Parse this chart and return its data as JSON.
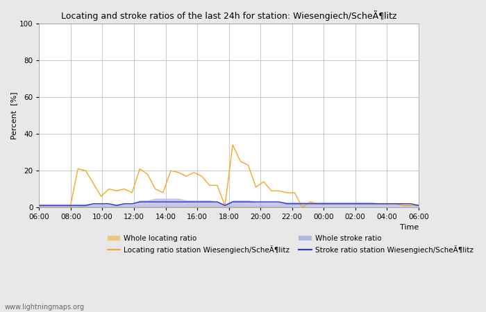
{
  "title": "Locating and stroke ratios of the last 24h for station: Wiesengiech/ScheÃ¶litz",
  "xlabel": "Time",
  "ylabel": "Percent  [%]",
  "watermark": "www.lightningmaps.org",
  "ylim": [
    0,
    100
  ],
  "yticks": [
    0,
    20,
    40,
    60,
    80,
    100
  ],
  "x_labels": [
    "06:00",
    "08:00",
    "10:00",
    "12:00",
    "14:00",
    "16:00",
    "18:00",
    "20:00",
    "22:00",
    "00:00",
    "02:00",
    "04:00",
    "06:00"
  ],
  "locating_line_color": "#f5a623",
  "locating_fill_color": "#e8c97a",
  "stroke_line_color": "#3030cc",
  "stroke_fill_color": "#b0b8e0",
  "bg_color": "#e8e8e8",
  "plot_bg_color": "#ffffff",
  "grid_color": "#b0b0b0",
  "locating_line": [
    0,
    0,
    0,
    0,
    0,
    21,
    20,
    13,
    6,
    10,
    9,
    10,
    8,
    21,
    18,
    10,
    8,
    20,
    19,
    17,
    19,
    17,
    12,
    12,
    1,
    34,
    25,
    23,
    11,
    14,
    9,
    9,
    8,
    8,
    0,
    3,
    2,
    2,
    2,
    2,
    2,
    2,
    2,
    2,
    2,
    2,
    2,
    1,
    1,
    1
  ],
  "locating_fill": [
    0,
    0,
    0,
    0,
    0,
    1,
    1,
    1,
    1,
    1,
    1,
    1,
    1,
    1,
    1,
    1,
    1,
    1,
    1,
    1,
    1,
    1,
    1,
    1,
    1,
    1,
    1,
    1,
    1,
    1,
    1,
    1,
    1,
    0,
    0,
    0,
    0,
    0,
    0,
    0,
    0,
    0,
    0,
    0,
    0,
    0,
    0,
    0,
    0,
    0
  ],
  "stroke_line": [
    1,
    1,
    1,
    1,
    1,
    1,
    1,
    2,
    2,
    2,
    1,
    2,
    2,
    3,
    3,
    3,
    3,
    3,
    3,
    3,
    3,
    3,
    3,
    3,
    1,
    3,
    3,
    3,
    3,
    3,
    3,
    3,
    2,
    2,
    2,
    2,
    2,
    2,
    2,
    2,
    2,
    2,
    2,
    2,
    2,
    2,
    2,
    2,
    2,
    1
  ],
  "stroke_fill": [
    2,
    2,
    2,
    2,
    2,
    2,
    2,
    2,
    2,
    2,
    2,
    2,
    2,
    4,
    4,
    5,
    5,
    5,
    5,
    4,
    4,
    4,
    4,
    3,
    2,
    4,
    4,
    4,
    3,
    3,
    3,
    3,
    3,
    3,
    3,
    3,
    3,
    3,
    3,
    3,
    3,
    3,
    3,
    3,
    2,
    2,
    2,
    2,
    2,
    2
  ],
  "n_points": 50,
  "legend_labels": [
    "Whole locating ratio",
    "Locating ratio station Wiesengiech/ScheÃ¶litz",
    "Whole stroke ratio",
    "Stroke ratio station Wiesengiech/ScheÃ¶litz"
  ]
}
